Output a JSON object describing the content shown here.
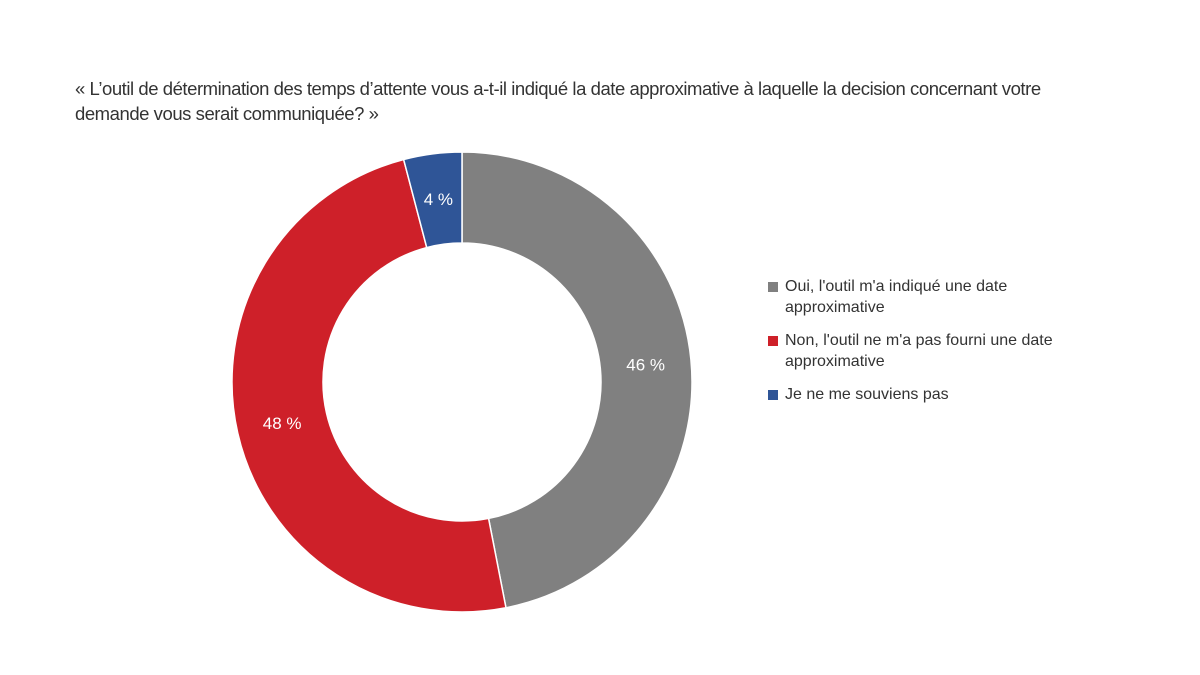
{
  "chart_data": {
    "type": "pie",
    "donut": true,
    "title": "« L’outil de détermination des temps d’attente vous a-t-il indiqué la date approximative à laquelle la decision concernant votre demande vous serait communiquée? »",
    "categories": [
      "Oui, l'outil m'a indiqué une date approximative",
      "Non, l'outil ne m'a pas fourni une date approximative",
      "Je ne me souviens pas"
    ],
    "values": [
      46,
      48,
      4
    ],
    "data_labels": [
      "46 %",
      "48 %",
      "4 %"
    ],
    "colors": [
      "#808080",
      "#CE2029",
      "#2F5597"
    ],
    "legend_position": "right"
  }
}
